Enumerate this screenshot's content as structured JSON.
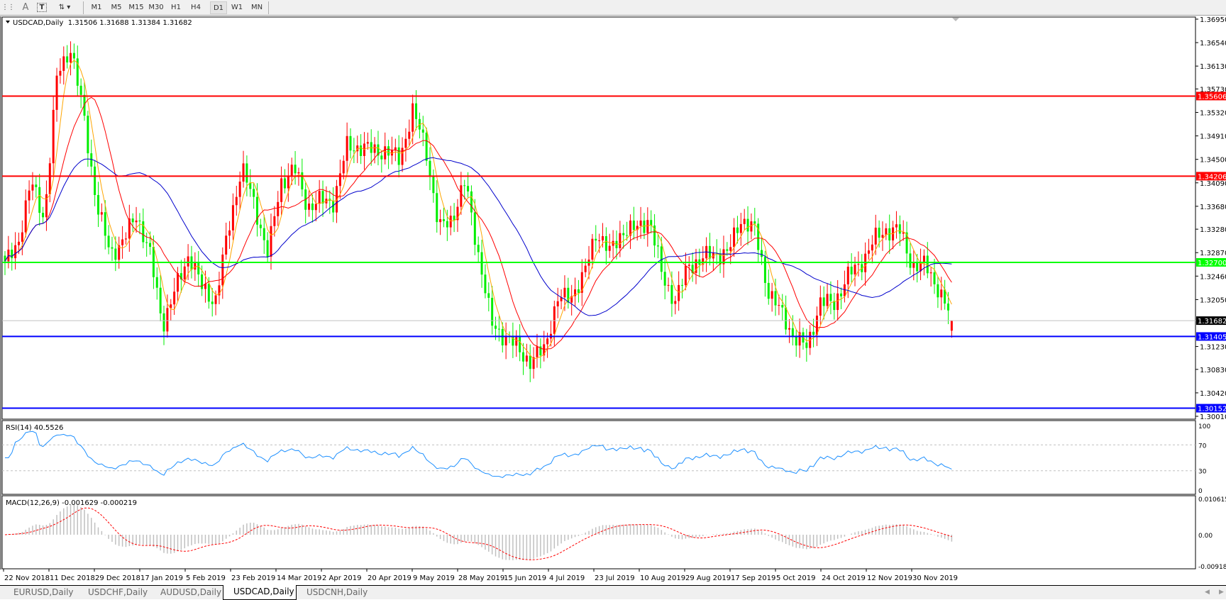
{
  "toolbar": {
    "icons": [
      "grid-icon",
      "text-icon",
      "text-label-icon",
      "arrows-icon"
    ],
    "text_tool": "A",
    "timeframes": [
      "M1",
      "M5",
      "M15",
      "M30",
      "H1",
      "H4",
      "D1",
      "W1",
      "MN"
    ],
    "active_timeframe": "D1"
  },
  "chart": {
    "header": "USDCAD,Daily  1.31506 1.31688 1.31384 1.31682",
    "ohlc": {
      "open": 1.31506,
      "high": 1.31688,
      "low": 1.31384,
      "close": 1.31682
    },
    "price_range": [
      1.3001,
      1.3695
    ],
    "price_ticks": [
      "1.36950",
      "1.36540",
      "1.36130",
      "1.35730",
      "1.35320",
      "1.34910",
      "1.34500",
      "1.34090",
      "1.33680",
      "1.33280",
      "1.32870",
      "1.32460",
      "1.32050",
      "1.31230",
      "1.30830",
      "1.30420",
      "1.30010"
    ],
    "levels": [
      {
        "value": "1.35606",
        "color": "#ff0000"
      },
      {
        "value": "1.34206",
        "color": "#ff0000"
      },
      {
        "value": "1.32700",
        "color": "#00ff00"
      },
      {
        "value": "1.31405",
        "color": "#0000ff"
      },
      {
        "value": "1.30152",
        "color": "#0000ff"
      }
    ],
    "bid": {
      "value": "1.31682",
      "color": "#c0c0c0"
    },
    "bull_color": "#ff0000",
    "bear_color": "#00ee00",
    "ma_colors": [
      "#ffa500",
      "#ff0000",
      "#0000cc"
    ],
    "price_path": [
      1.3265,
      1.3306,
      1.341,
      1.3348,
      1.3603,
      1.3645,
      1.3525,
      1.3368,
      1.3286,
      1.3306,
      1.3355,
      1.3286,
      1.3162,
      1.3224,
      1.3286,
      1.3224,
      1.3203,
      1.3327,
      1.3438,
      1.3368,
      1.3286,
      1.341,
      1.3435,
      1.3368,
      1.3377,
      1.3377,
      1.3472,
      1.3472,
      1.3465,
      1.3465,
      1.3451,
      1.3534,
      1.3472,
      1.3327,
      1.3348,
      1.341,
      1.3286,
      1.3162,
      1.3141,
      1.312,
      1.3095,
      1.312,
      1.3203,
      1.3212,
      1.3244,
      1.3327,
      1.3286,
      1.3327,
      1.3327,
      1.3348,
      1.3244,
      1.3203,
      1.3265,
      1.3276,
      1.3286,
      1.3286,
      1.3348,
      1.3327,
      1.3224,
      1.3182,
      1.3141,
      1.312,
      1.3203,
      1.3195,
      1.3244,
      1.3265,
      1.3306,
      1.3327,
      1.3327,
      1.3265,
      1.3265,
      1.3224,
      1.31682
    ],
    "x_labels": [
      "22 Nov 2018",
      "11 Dec 2018",
      "29 Dec 2018",
      "17 Jan 2019",
      "5 Feb 2019",
      "23 Feb 2019",
      "14 Mar 2019",
      "2 Apr 2019",
      "20 Apr 2019",
      "9 May 2019",
      "28 May 2019",
      "15 Jun 2019",
      "4 Jul 2019",
      "23 Jul 2019",
      "10 Aug 2019",
      "29 Aug 2019",
      "17 Sep 2019",
      "5 Oct 2019",
      "24 Oct 2019",
      "12 Nov 2019",
      "30 Nov 2019"
    ]
  },
  "rsi": {
    "label": "RSI(14) 40.5526",
    "ticks": [
      "100",
      "70",
      "30",
      "0"
    ],
    "levels": [
      70,
      30
    ],
    "color": "#1e90ff"
  },
  "macd": {
    "label": "MACD(12,26,9) -0.001629 -0.000219",
    "ticks": [
      "0.010615",
      "0.00",
      "-0.009181"
    ],
    "range": [
      -0.009181,
      0.010615
    ],
    "hist_color": "#c0c0c0",
    "signal_color": "#ff0000"
  },
  "tabs": [
    "EURUSD,Daily",
    "USDCHF,Daily",
    "AUDUSD,Daily",
    "USDCAD,Daily",
    "USDCNH,Daily"
  ],
  "active_tab": "USDCAD,Daily"
}
